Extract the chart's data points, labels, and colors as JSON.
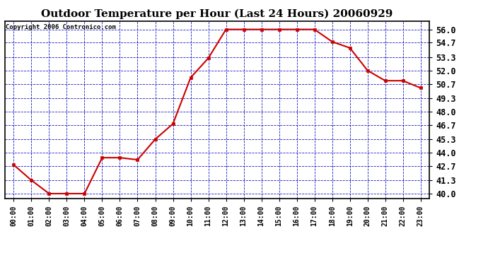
{
  "title": "Outdoor Temperature per Hour (Last 24 Hours) 20060929",
  "copyright_text": "Copyright 2006 Contronico.com",
  "hours": [
    0,
    1,
    2,
    3,
    4,
    5,
    6,
    7,
    8,
    9,
    10,
    11,
    12,
    13,
    14,
    15,
    16,
    17,
    18,
    19,
    20,
    21,
    22,
    23
  ],
  "x_labels": [
    "00:00",
    "01:00",
    "02:00",
    "03:00",
    "04:00",
    "05:00",
    "06:00",
    "07:00",
    "08:00",
    "09:00",
    "10:00",
    "11:00",
    "12:00",
    "13:00",
    "14:00",
    "15:00",
    "16:00",
    "17:00",
    "18:00",
    "19:00",
    "20:00",
    "21:00",
    "22:00",
    "23:00"
  ],
  "temps": [
    42.8,
    41.3,
    40.0,
    40.0,
    40.0,
    43.5,
    43.5,
    43.3,
    45.3,
    46.8,
    51.3,
    53.2,
    56.0,
    56.0,
    56.0,
    56.0,
    56.0,
    56.0,
    54.8,
    54.2,
    52.0,
    51.0,
    51.0,
    50.3
  ],
  "y_ticks": [
    40.0,
    41.3,
    42.7,
    44.0,
    45.3,
    46.7,
    48.0,
    49.3,
    50.7,
    52.0,
    53.3,
    54.7,
    56.0
  ],
  "y_tick_labels": [
    "40.0",
    "41.3",
    "42.7",
    "44.0",
    "45.3",
    "46.7",
    "48.0",
    "49.3",
    "50.7",
    "52.0",
    "53.3",
    "54.7",
    "56.0"
  ],
  "ylim": [
    39.5,
    56.8
  ],
  "xlim": [
    -0.5,
    23.5
  ],
  "line_color": "#cc0000",
  "marker_color": "#cc0000",
  "bg_color": "#ffffff",
  "plot_bg_color": "#ffffff",
  "grid_color": "#0000bb",
  "border_color": "#000000",
  "title_fontsize": 11,
  "copyright_fontsize": 6.5,
  "tick_fontsize": 8.5,
  "xlabel_fontsize": 7
}
